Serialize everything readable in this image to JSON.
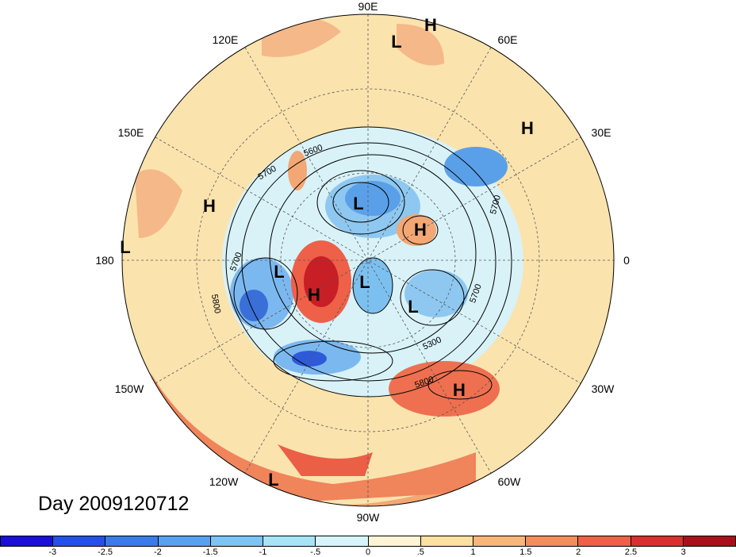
{
  "date_label": "Day 2009120712",
  "lon_labels": {
    "e90": "90E",
    "e120": "120E",
    "e60": "60E",
    "e150": "150E",
    "e30": "30E",
    "w180": "180",
    "w0": "0",
    "w150": "150W",
    "w30": "30W",
    "w120": "120W",
    "w60": "60W",
    "w90": "90W"
  },
  "pressure_centers": {
    "h1": "H",
    "l1": "L",
    "h2": "H",
    "h3": "H",
    "l2": "L",
    "h4": "H",
    "l3": "L",
    "l4": "L",
    "h5": "H",
    "l5": "L",
    "l6": "L",
    "h6": "H",
    "l7": "L"
  },
  "contour_labels": {
    "c1": "5700",
    "c2": "5600",
    "c3": "5700",
    "c4": "5800",
    "c5": "5700",
    "c6": "5300",
    "c7": "5800",
    "c8": "5700"
  },
  "colorbar": {
    "colors": [
      "#1a0fd4",
      "#2550e8",
      "#3a7be8",
      "#5aa0f0",
      "#7cc4f4",
      "#a8e4f8",
      "#d8f4fa",
      "#fdf5d6",
      "#fbe0a0",
      "#f8b67a",
      "#f38d5e",
      "#ee6048",
      "#d8302e",
      "#a8101c"
    ],
    "ticks": [
      "-3",
      "-2.5",
      "-2",
      "-1.5",
      "-1",
      "-.5",
      "0",
      ".5",
      "1",
      "1.5",
      "2",
      "2.5",
      "3"
    ]
  }
}
